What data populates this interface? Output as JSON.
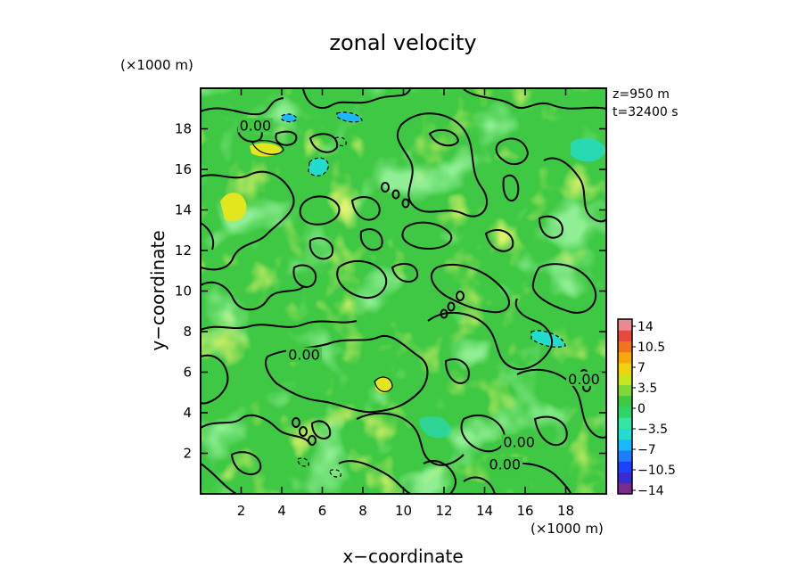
{
  "chart_data": {
    "type": "heatmap",
    "title": "zonal velocity",
    "xlabel": "x−coordinate",
    "ylabel": "y−coordinate",
    "x_unit": "(×1000 m)",
    "y_unit": "(×1000 m)",
    "xlim": [
      0,
      20
    ],
    "ylim": [
      0,
      20
    ],
    "x_ticks": [
      2,
      4,
      6,
      8,
      10,
      12,
      14,
      16,
      18
    ],
    "y_ticks": [
      2,
      4,
      6,
      8,
      10,
      12,
      14,
      16,
      18
    ],
    "info": [
      "z=950 m",
      "t=32400 s"
    ],
    "contour_labels": [
      {
        "text": "0.00",
        "x": 2.7,
        "y": 18.0
      },
      {
        "text": "0.00",
        "x": 5.1,
        "y": 6.7
      },
      {
        "text": "0.00",
        "x": 15.7,
        "y": 2.4
      },
      {
        "text": "0.00",
        "x": 15.0,
        "y": 1.3
      },
      {
        "text": "0.00",
        "x": 18.9,
        "y": 5.5
      }
    ],
    "colorbar": {
      "min": -14,
      "max": 14,
      "tick_labels": [
        "14",
        "10.5",
        "7",
        "3.5",
        "0",
        "−3.5",
        "−7",
        "−10.5",
        "−14"
      ],
      "colors": [
        "#7b2a8f",
        "#3a2bd0",
        "#1f40ff",
        "#1e7cff",
        "#19b8ff",
        "#22dccd",
        "#33e6a4",
        "#2fd36a",
        "#3fc843",
        "#7fd836",
        "#c6e71e",
        "#f1d20f",
        "#f5a70c",
        "#f0741c",
        "#e8483f",
        "#e88a90"
      ]
    },
    "colors": {
      "background_field": "#3fc843",
      "contour_line": "#000000"
    }
  }
}
